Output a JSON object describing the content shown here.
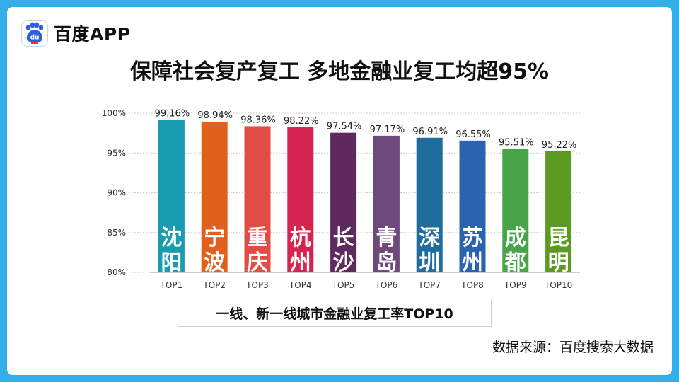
{
  "brand": {
    "name": "百度APP",
    "logo_text": "du"
  },
  "title": "保障社会复产复工 多地金融业复工均超95%",
  "caption": "一线、新一线城市金融业复工率TOP10",
  "source": "数据来源：百度搜索大数据",
  "chart_data": {
    "type": "bar",
    "categories": [
      "TOP1",
      "TOP2",
      "TOP3",
      "TOP4",
      "TOP5",
      "TOP6",
      "TOP7",
      "TOP8",
      "TOP9",
      "TOP10"
    ],
    "bar_labels": [
      "沈阳",
      "宁波",
      "重庆",
      "杭州",
      "长沙",
      "青岛",
      "深圳",
      "苏州",
      "成都",
      "昆明"
    ],
    "values": [
      99.16,
      98.94,
      98.36,
      98.22,
      97.54,
      97.17,
      96.91,
      96.55,
      95.51,
      95.22
    ],
    "value_labels": [
      "99.16%",
      "98.94%",
      "98.36%",
      "98.22%",
      "97.54%",
      "97.17%",
      "96.91%",
      "96.55%",
      "95.51%",
      "95.22%"
    ],
    "colors": [
      "#1a9cb0",
      "#e0601c",
      "#e24c44",
      "#d7234f",
      "#5e2a5e",
      "#6e4a7c",
      "#1e6d9e",
      "#2b63b0",
      "#47a449",
      "#5c9a22"
    ],
    "ylim": [
      80,
      100
    ],
    "yticks": [
      80,
      85,
      90,
      95,
      100
    ],
    "ytick_labels": [
      "80%",
      "85%",
      "90%",
      "95%",
      "100%"
    ],
    "grid": true
  }
}
